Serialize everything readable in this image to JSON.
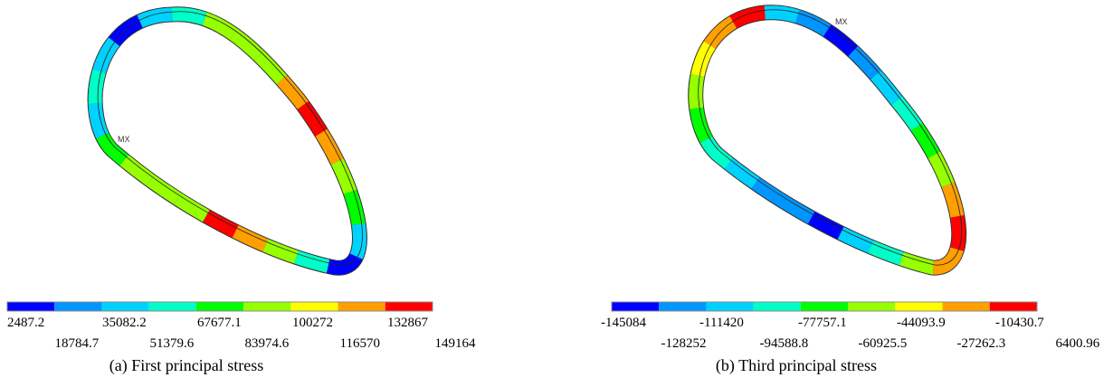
{
  "panels": [
    {
      "caption": "(a) First principal stress",
      "marker": "MX",
      "legend_labels": [
        "2487.2",
        "18784.7",
        "35082.2",
        "51379.6",
        "67677.1",
        "83974.6",
        "100272",
        "116570",
        "132867",
        "149164"
      ]
    },
    {
      "caption": "(b) Third principal stress",
      "marker": "MX",
      "legend_labels": [
        "-145084",
        "-128252",
        "-111420",
        "-94588.8",
        "-77757.1",
        "-60925.5",
        "-44093.9",
        "-27262.3",
        "-10430.7",
        "6400.96"
      ]
    }
  ],
  "legend_colors": [
    "#0000ff",
    "#0096ff",
    "#00d2ff",
    "#00ffc8",
    "#00ff00",
    "#96ff00",
    "#ffff00",
    "#ffa000",
    "#ff0000"
  ]
}
